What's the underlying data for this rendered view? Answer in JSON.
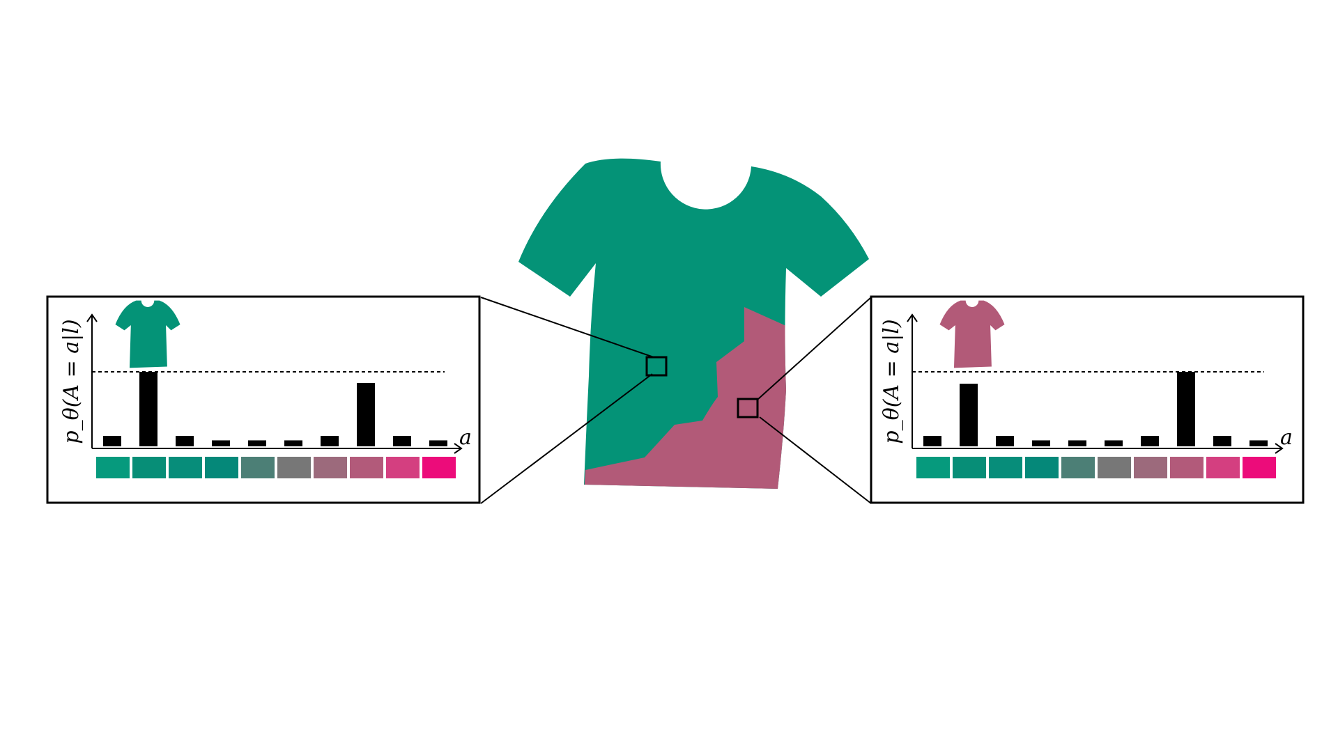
{
  "colors": {
    "teal": "#049377",
    "mauve": "#B25A78",
    "box_stroke": "#000000",
    "bar_fill": "#000000"
  },
  "palette": [
    "#069A7D",
    "#078E77",
    "#078D7A",
    "#058879",
    "#4C7F76",
    "#777777",
    "#9C6A7C",
    "#B25A7A",
    "#D43F80",
    "#EC0C7A"
  ],
  "center_shirt": {
    "icon": "t-shirt-icon",
    "segments": [
      "teal",
      "mauve"
    ]
  },
  "left_panel": {
    "ylabel": "p_θ(A = a|l)",
    "xlabel": "a",
    "icon": "teal-t-shirt-icon",
    "icon_color": "#049377",
    "reference_level": 1.0,
    "values": [
      0.14,
      1.0,
      0.14,
      0.08,
      0.08,
      0.08,
      0.14,
      0.85,
      0.14,
      0.08
    ]
  },
  "right_panel": {
    "ylabel": "p_θ(A = a|l)",
    "xlabel": "a",
    "icon": "mauve-t-shirt-icon",
    "icon_color": "#B25A78",
    "reference_level": 1.0,
    "values": [
      0.14,
      0.84,
      0.14,
      0.08,
      0.08,
      0.08,
      0.14,
      1.0,
      0.14,
      0.08
    ]
  }
}
